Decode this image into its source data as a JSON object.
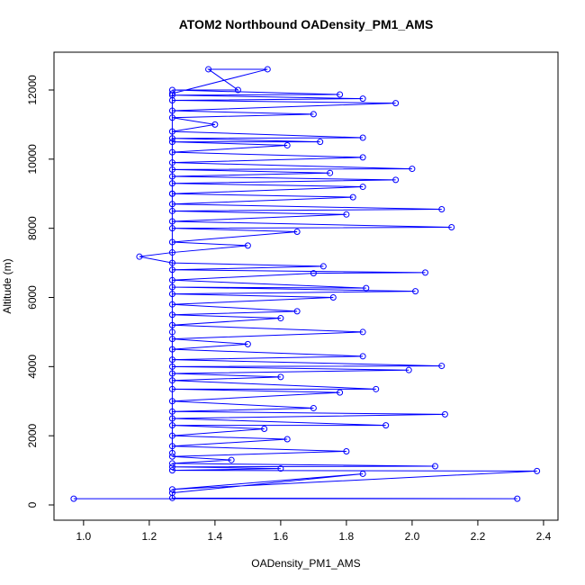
{
  "chart_data": {
    "type": "line",
    "title": "ATOM2 Northbound OADensity_PM1_AMS",
    "x_label": "OADensity_PM1_AMS",
    "y_label": "Altitude (m)",
    "color": "#0000ff",
    "xlim": [
      0.91,
      2.444
    ],
    "ylim": [
      -442,
      13093
    ],
    "xticks": [
      {
        "value": 1,
        "label": "1.0"
      },
      1.2,
      1.4,
      1.6,
      1.8,
      {
        "value": 2,
        "label": "2.0"
      },
      2.2,
      2.4
    ],
    "yticks": [
      0,
      2000,
      4000,
      6000,
      8000,
      10000,
      12000
    ],
    "x": [
      0.97,
      2.32,
      1.27,
      1.27,
      1.85,
      1.27,
      2.38,
      1.27,
      1.6,
      1.27,
      2.07,
      1.27,
      1.45,
      1.27,
      1.8,
      1.27,
      1.62,
      1.27,
      1.55,
      1.27,
      1.92,
      1.27,
      2.1,
      1.27,
      1.7,
      1.27,
      1.78,
      1.27,
      1.89,
      1.27,
      1.6,
      1.27,
      1.99,
      1.27,
      2.09,
      1.27,
      1.85,
      1.27,
      1.5,
      1.27,
      1.85,
      1.27,
      1.6,
      1.27,
      1.65,
      1.27,
      1.76,
      1.27,
      2.01,
      1.27,
      1.86,
      1.27,
      1.7,
      2.04,
      1.27,
      1.73,
      1.27,
      1.17,
      1.27,
      1.5,
      1.27,
      1.65,
      1.27,
      2.12,
      1.27,
      1.8,
      1.27,
      2.09,
      1.27,
      1.82,
      1.27,
      1.85,
      1.27,
      1.95,
      1.27,
      1.75,
      1.27,
      2.0,
      1.27,
      1.85,
      1.27,
      1.62,
      1.27,
      1.72,
      1.27,
      1.85,
      1.27,
      1.4,
      1.27,
      1.7,
      1.27,
      1.95,
      1.27,
      1.85,
      1.27,
      1.78,
      1.27,
      1.47,
      1.38,
      1.56,
      1.27,
      1.27,
      1.27,
      1.27
    ],
    "values": [
      180,
      180,
      200,
      350,
      900,
      450,
      980,
      1000,
      1050,
      1100,
      1120,
      1200,
      1300,
      1400,
      1550,
      1700,
      1900,
      2000,
      2200,
      2300,
      2300,
      2500,
      2620,
      2700,
      2800,
      3000,
      3250,
      3350,
      3350,
      3600,
      3700,
      3800,
      3900,
      4000,
      4020,
      4200,
      4300,
      4500,
      4650,
      4800,
      5000,
      5200,
      5400,
      5500,
      5600,
      5800,
      6000,
      6100,
      6180,
      6300,
      6270,
      6500,
      6700,
      6720,
      6800,
      6900,
      7000,
      7180,
      7300,
      7500,
      7600,
      7900,
      8000,
      8030,
      8200,
      8400,
      8500,
      8550,
      8700,
      8900,
      9000,
      9200,
      9300,
      9400,
      9500,
      9600,
      9700,
      9720,
      9900,
      10050,
      10200,
      10400,
      10500,
      10500,
      10600,
      10620,
      10800,
      11000,
      11200,
      11300,
      11400,
      11620,
      11700,
      11750,
      11850,
      11870,
      12000,
      12000,
      12600,
      12600,
      11900,
      9000,
      5000,
      1500
    ]
  }
}
